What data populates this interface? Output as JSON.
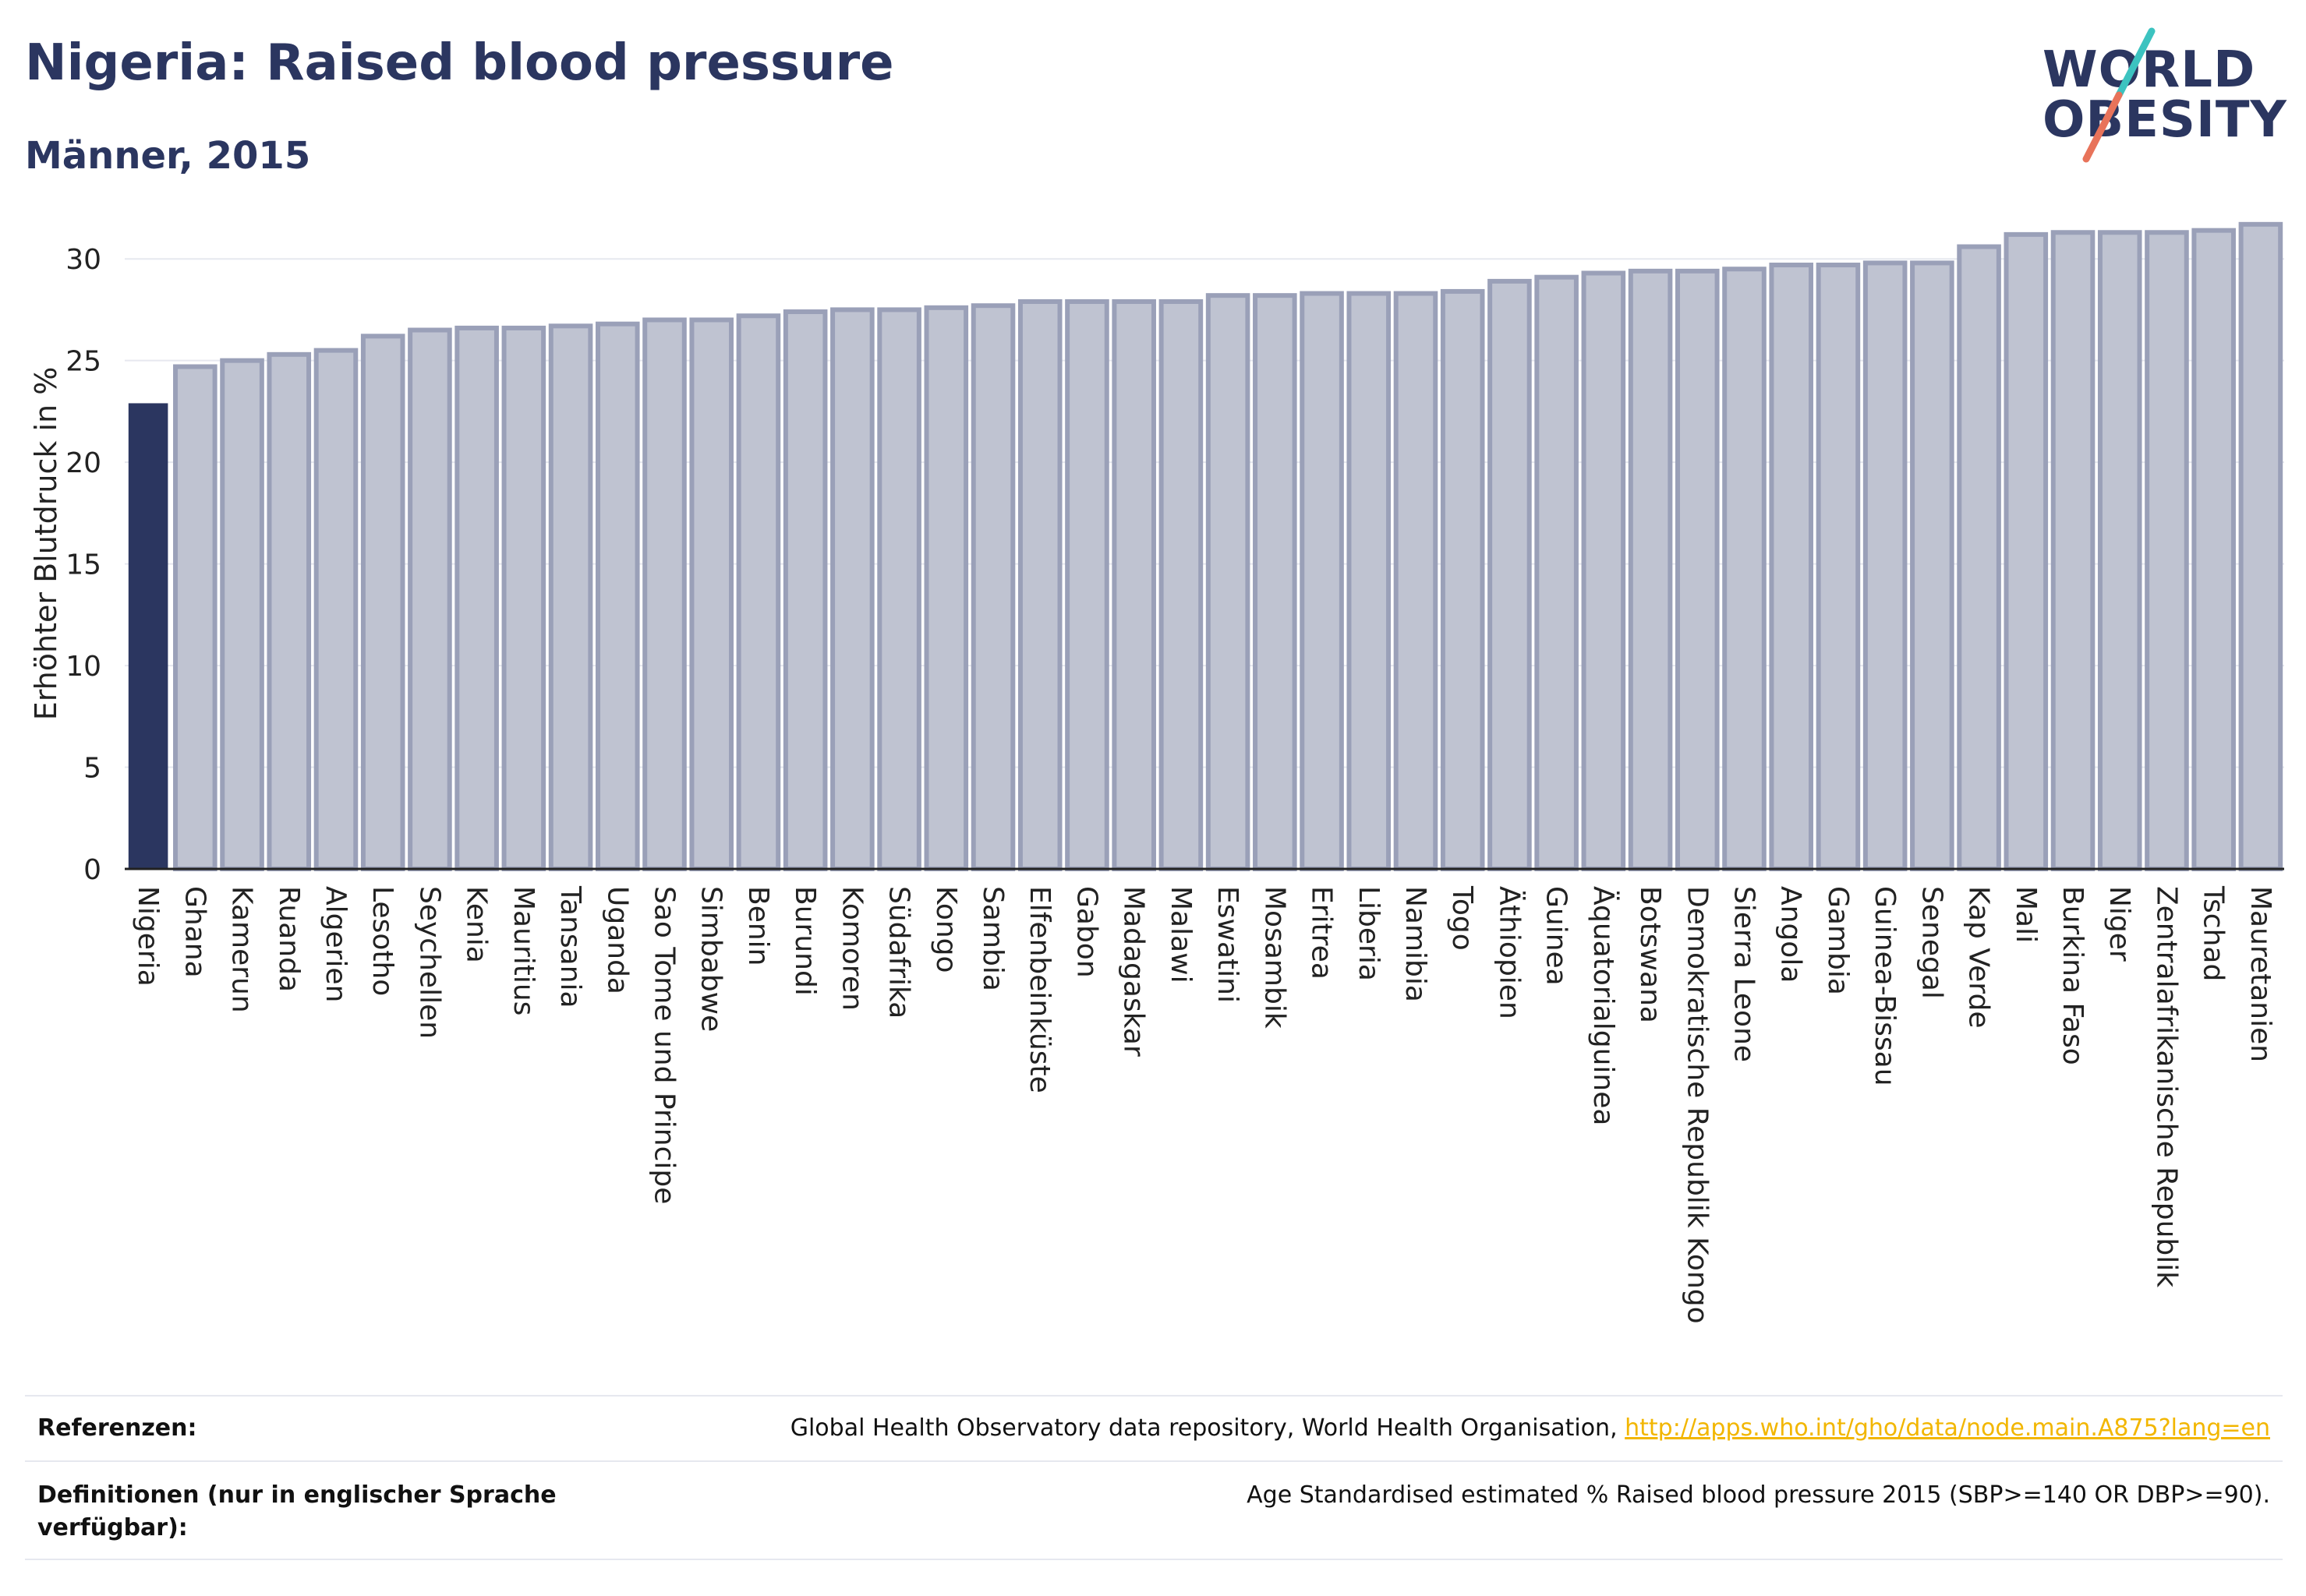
{
  "header": {
    "title": "Nigeria: Raised blood pressure",
    "subtitle": "Männer, 2015"
  },
  "logo": {
    "line1": "WORLD",
    "line2": "OBESITY",
    "accent_colors": [
      "#3cc3c0",
      "#e8735a"
    ]
  },
  "colors": {
    "highlight": "#2b3660",
    "bar_fill": "#bfc3d1",
    "bar_stroke": "#9aa0b8",
    "grid": "#e6e8ef"
  },
  "chart_data": {
    "type": "bar",
    "ylabel": "Erhöhter Blutdruck in %",
    "ylim": [
      0,
      32
    ],
    "yticks": [
      0,
      5,
      10,
      15,
      20,
      25,
      30
    ],
    "grid": true,
    "highlight_category": "Nigeria",
    "categories": [
      "Nigeria",
      "Ghana",
      "Kamerun",
      "Ruanda",
      "Algerien",
      "Lesotho",
      "Seychellen",
      "Kenia",
      "Mauritius",
      "Tansania",
      "Uganda",
      "Sao Tome und Principe",
      "Simbabwe",
      "Benin",
      "Burundi",
      "Komoren",
      "Südafrika",
      "Kongo",
      "Sambia",
      "Elfenbeinküste",
      "Gabon",
      "Madagaskar",
      "Malawi",
      "Eswatini",
      "Mosambik",
      "Eritrea",
      "Liberia",
      "Namibia",
      "Togo",
      "Äthiopien",
      "Guinea",
      "Äquatorialguinea",
      "Botswana",
      "Demokratische Republik Kongo",
      "Sierra Leone",
      "Angola",
      "Gambia",
      "Guinea-Bissau",
      "Senegal",
      "Kap Verde",
      "Mali",
      "Burkina Faso",
      "Niger",
      "Zentralafrikanische Republik",
      "Tschad",
      "Mauretanien"
    ],
    "values": [
      22.9,
      24.7,
      25.0,
      25.3,
      25.5,
      26.2,
      26.5,
      26.6,
      26.6,
      26.7,
      26.8,
      27.0,
      27.0,
      27.2,
      27.4,
      27.5,
      27.5,
      27.6,
      27.7,
      27.9,
      27.9,
      27.9,
      27.9,
      28.2,
      28.2,
      28.3,
      28.3,
      28.3,
      28.4,
      28.9,
      29.1,
      29.3,
      29.4,
      29.4,
      29.5,
      29.7,
      29.7,
      29.8,
      29.8,
      30.6,
      31.2,
      31.3,
      31.3,
      31.3,
      31.4,
      31.7
    ]
  },
  "footer": {
    "references_label": "Referenzen:",
    "references_text": "Global Health Observatory data repository, World Health Organisation, ",
    "references_link": "http://apps.who.int/gho/data/node.main.A875?lang=en",
    "definitions_label": "Definitionen (nur in englischer Sprache verfügbar):",
    "definitions_text": "Age Standardised estimated % Raised blood pressure 2015 (SBP>=140 OR DBP>=90)."
  }
}
